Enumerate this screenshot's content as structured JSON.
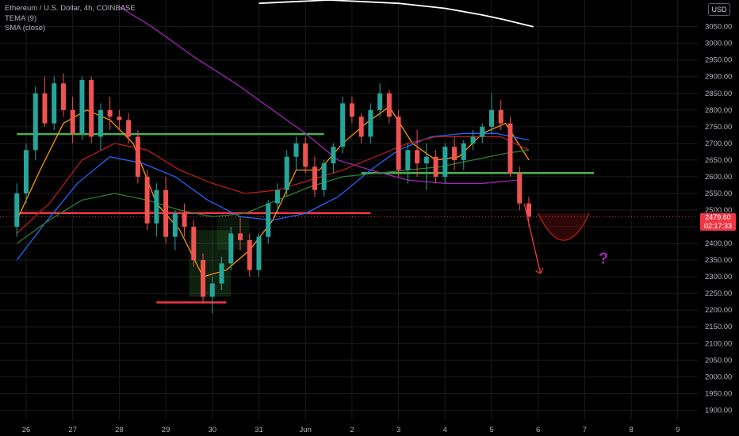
{
  "symbol_title": "Ethereum / U.S. Dollar, 4h, COINBASE",
  "indicators": [
    "TEMA (9)",
    "SMA (close)"
  ],
  "currency": "USD",
  "last_price": "2479.60",
  "countdown": "02:17:33",
  "annotation_symbol": "?",
  "colors": {
    "up": "#26a69a",
    "down": "#ef5350",
    "tema": "#ff9800",
    "sma_white": "#ffffff",
    "sma_purple": "#9c27b0",
    "sma_blue": "#2962ff",
    "sma_red": "#b71c1c",
    "sma_green": "#2e7d32",
    "level_green": "#4caf50",
    "level_red": "#f23645",
    "question": "#9c27b0"
  },
  "chart_data": {
    "type": "candlestick",
    "timeframe": "4h",
    "ylim": [
      1870,
      3130
    ],
    "y_ticks": [
      1900,
      1950,
      2000,
      2050,
      2100,
      2150,
      2200,
      2250,
      2300,
      2350,
      2400,
      2450,
      2500,
      2550,
      2600,
      2650,
      2700,
      2750,
      2800,
      2850,
      2900,
      2950,
      3000,
      3050
    ],
    "x_labels": [
      "26",
      "27",
      "28",
      "29",
      "30",
      "31",
      "Jun",
      "2",
      "3",
      "4",
      "5",
      "6",
      "7",
      "8",
      "9"
    ],
    "candles": [
      {
        "o": 2450,
        "h": 2580,
        "l": 2420,
        "c": 2550,
        "d": 25.8
      },
      {
        "o": 2550,
        "h": 2700,
        "l": 2520,
        "c": 2680,
        "d": 26.0
      },
      {
        "o": 2680,
        "h": 2870,
        "l": 2650,
        "c": 2850,
        "d": 26.2
      },
      {
        "o": 2850,
        "h": 2900,
        "l": 2750,
        "c": 2760,
        "d": 26.4
      },
      {
        "o": 2760,
        "h": 2900,
        "l": 2740,
        "c": 2880,
        "d": 26.6
      },
      {
        "o": 2880,
        "h": 2910,
        "l": 2780,
        "c": 2800,
        "d": 26.8
      },
      {
        "o": 2800,
        "h": 2840,
        "l": 2700,
        "c": 2730,
        "d": 27.0
      },
      {
        "o": 2730,
        "h": 2900,
        "l": 2710,
        "c": 2890,
        "d": 27.2
      },
      {
        "o": 2890,
        "h": 2900,
        "l": 2700,
        "c": 2720,
        "d": 27.4
      },
      {
        "o": 2720,
        "h": 2820,
        "l": 2680,
        "c": 2800,
        "d": 27.6
      },
      {
        "o": 2800,
        "h": 2840,
        "l": 2740,
        "c": 2780,
        "d": 27.8
      },
      {
        "o": 2780,
        "h": 2800,
        "l": 2740,
        "c": 2770,
        "d": 28.0
      },
      {
        "o": 2770,
        "h": 2790,
        "l": 2700,
        "c": 2720,
        "d": 28.2
      },
      {
        "o": 2720,
        "h": 2740,
        "l": 2580,
        "c": 2600,
        "d": 28.4
      },
      {
        "o": 2600,
        "h": 2620,
        "l": 2440,
        "c": 2460,
        "d": 28.6
      },
      {
        "o": 2460,
        "h": 2580,
        "l": 2420,
        "c": 2560,
        "d": 28.8
      },
      {
        "o": 2560,
        "h": 2600,
        "l": 2400,
        "c": 2420,
        "d": 29.0
      },
      {
        "o": 2420,
        "h": 2500,
        "l": 2380,
        "c": 2490,
        "d": 29.2
      },
      {
        "o": 2490,
        "h": 2520,
        "l": 2420,
        "c": 2450,
        "d": 29.4
      },
      {
        "o": 2450,
        "h": 2470,
        "l": 2330,
        "c": 2350,
        "d": 29.6
      },
      {
        "o": 2350,
        "h": 2370,
        "l": 2220,
        "c": 2240,
        "d": 29.8
      },
      {
        "o": 2240,
        "h": 2300,
        "l": 2190,
        "c": 2280,
        "d": 30.0
      },
      {
        "o": 2280,
        "h": 2360,
        "l": 2260,
        "c": 2340,
        "d": 30.2
      },
      {
        "o": 2340,
        "h": 2450,
        "l": 2320,
        "c": 2430,
        "d": 30.4
      },
      {
        "o": 2430,
        "h": 2480,
        "l": 2380,
        "c": 2410,
        "d": 30.6
      },
      {
        "o": 2410,
        "h": 2430,
        "l": 2300,
        "c": 2320,
        "d": 30.8
      },
      {
        "o": 2320,
        "h": 2430,
        "l": 2300,
        "c": 2420,
        "d": 31.0
      },
      {
        "o": 2420,
        "h": 2530,
        "l": 2400,
        "c": 2520,
        "d": 31.2
      },
      {
        "o": 2520,
        "h": 2580,
        "l": 2490,
        "c": 2560,
        "d": 31.4
      },
      {
        "o": 2560,
        "h": 2680,
        "l": 2540,
        "c": 2660,
        "d": 31.6
      },
      {
        "o": 2660,
        "h": 2720,
        "l": 2620,
        "c": 2700,
        "d": 31.8
      },
      {
        "o": 2700,
        "h": 2720,
        "l": 2610,
        "c": 2630,
        "d": 32.0
      },
      {
        "o": 2630,
        "h": 2660,
        "l": 2540,
        "c": 2560,
        "d": 32.2
      },
      {
        "o": 2560,
        "h": 2650,
        "l": 2540,
        "c": 2640,
        "d": 32.4
      },
      {
        "o": 2640,
        "h": 2700,
        "l": 2610,
        "c": 2690,
        "d": 32.6
      },
      {
        "o": 2690,
        "h": 2840,
        "l": 2670,
        "c": 2820,
        "d": 32.8
      },
      {
        "o": 2820,
        "h": 2840,
        "l": 2760,
        "c": 2780,
        "d": 33.0
      },
      {
        "o": 2780,
        "h": 2790,
        "l": 2700,
        "c": 2720,
        "d": 33.2
      },
      {
        "o": 2720,
        "h": 2820,
        "l": 2700,
        "c": 2800,
        "d": 33.4
      },
      {
        "o": 2800,
        "h": 2880,
        "l": 2780,
        "c": 2850,
        "d": 33.6
      },
      {
        "o": 2850,
        "h": 2860,
        "l": 2760,
        "c": 2780,
        "d": 33.8
      },
      {
        "o": 2780,
        "h": 2800,
        "l": 2600,
        "c": 2620,
        "d": 34.0
      },
      {
        "o": 2620,
        "h": 2700,
        "l": 2580,
        "c": 2680,
        "d": 34.2
      },
      {
        "o": 2680,
        "h": 2740,
        "l": 2600,
        "c": 2640,
        "d": 34.4
      },
      {
        "o": 2640,
        "h": 2700,
        "l": 2560,
        "c": 2660,
        "d": 34.6
      },
      {
        "o": 2660,
        "h": 2680,
        "l": 2580,
        "c": 2600,
        "d": 34.8
      },
      {
        "o": 2600,
        "h": 2700,
        "l": 2580,
        "c": 2690,
        "d": 35.0
      },
      {
        "o": 2690,
        "h": 2720,
        "l": 2620,
        "c": 2650,
        "d": 35.2
      },
      {
        "o": 2650,
        "h": 2710,
        "l": 2620,
        "c": 2700,
        "d": 35.4
      },
      {
        "o": 2700,
        "h": 2740,
        "l": 2680,
        "c": 2720,
        "d": 35.6
      },
      {
        "o": 2720,
        "h": 2760,
        "l": 2700,
        "c": 2750,
        "d": 35.8
      },
      {
        "o": 2750,
        "h": 2850,
        "l": 2730,
        "c": 2800,
        "d": 36.0
      },
      {
        "o": 2800,
        "h": 2830,
        "l": 2740,
        "c": 2760,
        "d": 36.2
      },
      {
        "o": 2760,
        "h": 2780,
        "l": 2600,
        "c": 2610,
        "d": 36.4
      },
      {
        "o": 2610,
        "h": 2630,
        "l": 2500,
        "c": 2520,
        "d": 36.6
      },
      {
        "o": 2520,
        "h": 2540,
        "l": 2450,
        "c": 2480,
        "d": 36.8
      }
    ],
    "levels": [
      {
        "price": 2728,
        "color": "green",
        "from": 25.8,
        "to": 32.4
      },
      {
        "price": 2491,
        "color": "red",
        "from": 25.8,
        "to": 33.4
      },
      {
        "price": 2611,
        "color": "green",
        "from": 33.2,
        "to": 38.2
      },
      {
        "price": 2223,
        "color": "red",
        "from": 28.8,
        "to": 30.3
      }
    ],
    "series": [
      {
        "name": "TEMA (9)",
        "points": [
          [
            25.8,
            2470
          ],
          [
            26.3,
            2620
          ],
          [
            26.8,
            2760
          ],
          [
            27.3,
            2800
          ],
          [
            27.8,
            2770
          ],
          [
            28.3,
            2700
          ],
          [
            28.8,
            2520
          ],
          [
            29.3,
            2440
          ],
          [
            29.8,
            2300
          ],
          [
            30.3,
            2320
          ],
          [
            30.8,
            2380
          ],
          [
            31.3,
            2470
          ],
          [
            31.8,
            2620
          ],
          [
            32.3,
            2620
          ],
          [
            32.8,
            2700
          ],
          [
            33.3,
            2760
          ],
          [
            33.8,
            2810
          ],
          [
            34.3,
            2700
          ],
          [
            34.8,
            2650
          ],
          [
            35.3,
            2660
          ],
          [
            35.8,
            2730
          ],
          [
            36.3,
            2760
          ],
          [
            36.8,
            2650
          ]
        ]
      },
      {
        "name": "SMA white",
        "points": [
          [
            31.0,
            3120
          ],
          [
            32.5,
            3130
          ],
          [
            34.0,
            3120
          ],
          [
            35.0,
            3105
          ],
          [
            35.8,
            3085
          ],
          [
            36.3,
            3070
          ],
          [
            36.9,
            3050
          ]
        ]
      },
      {
        "name": "SMA purple",
        "points": [
          [
            28.0,
            3110
          ],
          [
            28.7,
            3050
          ],
          [
            29.6,
            2960
          ],
          [
            30.5,
            2880
          ],
          [
            31.3,
            2800
          ],
          [
            32.0,
            2730
          ],
          [
            32.7,
            2650
          ],
          [
            33.4,
            2620
          ],
          [
            34.2,
            2590
          ],
          [
            35.0,
            2580
          ],
          [
            35.8,
            2580
          ],
          [
            36.6,
            2590
          ]
        ]
      },
      {
        "name": "SMA blue",
        "points": [
          [
            25.8,
            2350
          ],
          [
            26.4,
            2460
          ],
          [
            27.1,
            2580
          ],
          [
            27.8,
            2660
          ],
          [
            28.5,
            2640
          ],
          [
            29.2,
            2600
          ],
          [
            29.9,
            2530
          ],
          [
            30.6,
            2480
          ],
          [
            31.3,
            2470
          ],
          [
            32.0,
            2490
          ],
          [
            32.7,
            2540
          ],
          [
            33.4,
            2620
          ],
          [
            34.0,
            2680
          ],
          [
            34.7,
            2720
          ],
          [
            35.4,
            2730
          ],
          [
            36.1,
            2730
          ],
          [
            36.8,
            2710
          ]
        ]
      },
      {
        "name": "SMA red",
        "points": [
          [
            25.8,
            2430
          ],
          [
            26.5,
            2520
          ],
          [
            27.2,
            2650
          ],
          [
            27.9,
            2700
          ],
          [
            28.6,
            2680
          ],
          [
            29.3,
            2620
          ],
          [
            30.0,
            2580
          ],
          [
            30.7,
            2550
          ],
          [
            31.4,
            2560
          ],
          [
            32.1,
            2590
          ],
          [
            32.8,
            2620
          ],
          [
            33.5,
            2660
          ],
          [
            34.2,
            2700
          ],
          [
            34.8,
            2720
          ],
          [
            35.5,
            2720
          ],
          [
            36.2,
            2720
          ],
          [
            36.8,
            2680
          ]
        ]
      },
      {
        "name": "SMA green",
        "points": [
          [
            25.8,
            2400
          ],
          [
            26.5,
            2470
          ],
          [
            27.2,
            2530
          ],
          [
            27.9,
            2550
          ],
          [
            28.6,
            2530
          ],
          [
            29.3,
            2500
          ],
          [
            30.0,
            2480
          ],
          [
            30.7,
            2490
          ],
          [
            31.4,
            2530
          ],
          [
            32.1,
            2570
          ],
          [
            32.8,
            2600
          ],
          [
            33.5,
            2610
          ],
          [
            34.2,
            2620
          ],
          [
            34.9,
            2630
          ],
          [
            35.6,
            2650
          ],
          [
            36.3,
            2670
          ],
          [
            36.8,
            2680
          ]
        ]
      }
    ]
  }
}
